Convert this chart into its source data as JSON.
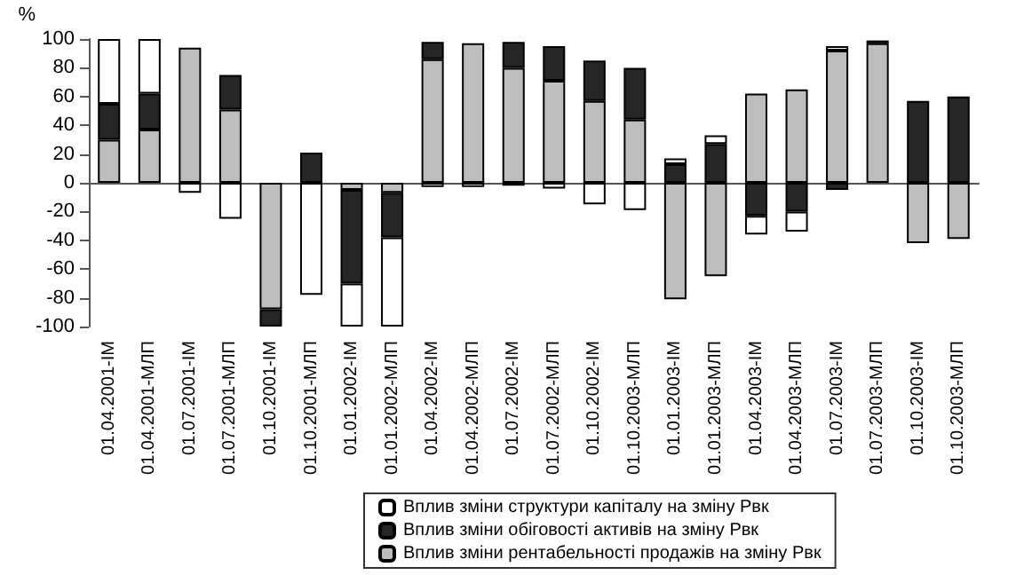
{
  "chart_data": {
    "type": "bar",
    "stacked": true,
    "ylabel": "%",
    "categories": [
      "01.04.2001-IM",
      "01.04.2001-МЛП",
      "01.07.2001-IM",
      "01.07.2001-МЛП",
      "01.10.2001-IM",
      "01.10.2001-МЛП",
      "01.01.2002-IM",
      "01.01.2002-МЛП",
      "01.04.2002-IM",
      "01.04.2002-МЛП",
      "01.07.2002-IM",
      "01.07.2002-МЛП",
      "01.10.2002-IM",
      "01.10.2003-МЛП",
      "01.01.2003-IM",
      "01.01.2003-МЛП",
      "01.04.2003-IM",
      "01.04.2003-МЛП",
      "01.07.2003-IM",
      "01.07.2003-МЛП",
      "01.10.2003-IM",
      "01.10.2003-МЛП"
    ],
    "series": [
      {
        "name": "Вплив зміни рентабельності продажів на зміну Рвк",
        "color": "#bdbdbd",
        "values": [
          30,
          37,
          94,
          51,
          -88,
          null,
          -5,
          -7,
          86,
          97,
          80,
          71,
          57,
          44,
          -81,
          -65,
          62,
          65,
          92,
          97,
          -42,
          -39
        ]
      },
      {
        "name": "Вплив зміни обіговості активів на зміну Рвк",
        "color": "#262626",
        "values": [
          25,
          25,
          null,
          24,
          -12,
          21,
          -65,
          -31,
          12,
          null,
          18,
          24,
          28,
          36,
          13,
          27,
          -23,
          -20,
          -5,
          2,
          57,
          60
        ]
      },
      {
        "name": "Вплив зміни структури капіталу на зміну Рвк",
        "color": "#ffffff",
        "values": [
          45,
          38,
          -7,
          -25,
          null,
          -78,
          -30,
          -62,
          -3,
          -3,
          -2,
          -4,
          -15,
          -19,
          4,
          6,
          -13,
          -14,
          3,
          null,
          null,
          null
        ]
      }
    ],
    "ylim": [
      -100,
      100
    ],
    "yticks": [
      -100,
      -80,
      -60,
      -40,
      -20,
      0,
      20,
      40,
      60,
      80,
      100
    ],
    "legend": "bottom"
  }
}
